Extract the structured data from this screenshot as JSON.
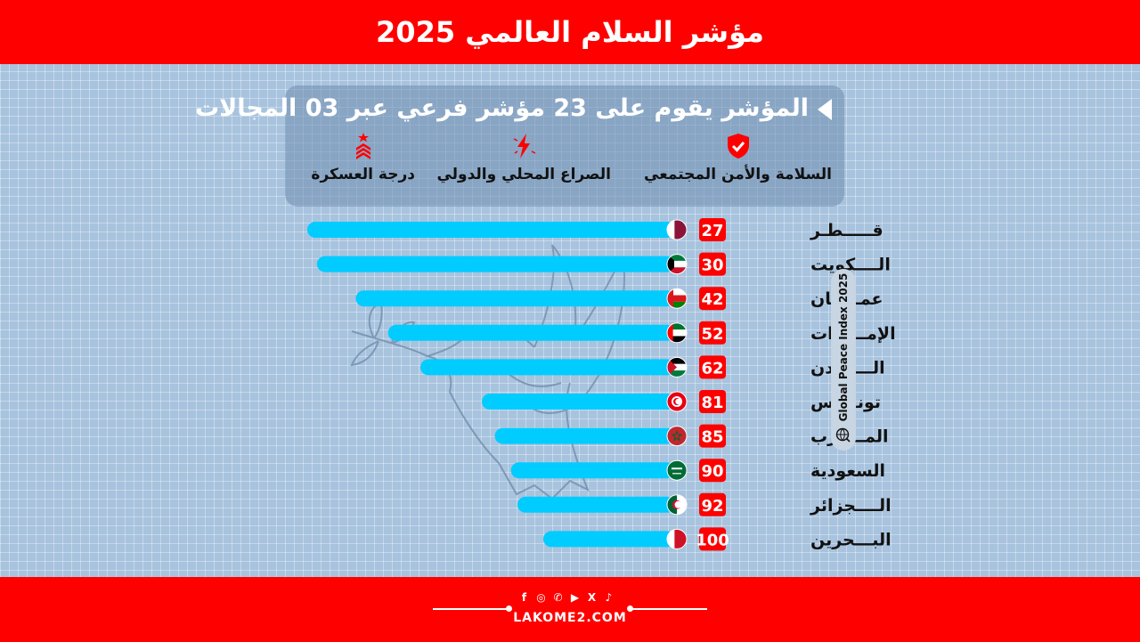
{
  "header": {
    "title": "مؤشر السلام العالمي 2025"
  },
  "info": {
    "heading": "المؤشر يقوم على 23 مؤشر فرعي عبر 03 المجالات",
    "domains": [
      {
        "label": "السلامة والأمن المجتمعي",
        "icon": "shield-check-icon"
      },
      {
        "label": "الصراع المحلي والدولي",
        "icon": "lightning-icon"
      },
      {
        "label": "درجة العسكرة",
        "icon": "military-rank-icon"
      }
    ]
  },
  "side_label": "Global Peace Index 2025",
  "colors": {
    "bar": "#00ccff",
    "accent": "#fe0000",
    "badge_text": "#ffffff"
  },
  "chart_data": {
    "type": "bar",
    "categories": [
      "قـــــطـر",
      "الــــكويت",
      "عمـــــان",
      "الإمـــارات",
      "الــــأردن",
      "تونــــس",
      "المـــغرب",
      "السعودية",
      "الــــجزائر",
      "البـــحرين"
    ],
    "values": [
      27,
      30,
      42,
      52,
      62,
      81,
      85,
      90,
      92,
      100
    ],
    "flags": [
      "qatar-flag-icon",
      "kuwait-flag-icon",
      "oman-flag-icon",
      "uae-flag-icon",
      "jordan-flag-icon",
      "tunisia-flag-icon",
      "morocco-flag-icon",
      "saudi-flag-icon",
      "algeria-flag-icon",
      "bahrain-flag-icon"
    ]
  },
  "footer": {
    "site": "LAKOME2.COM",
    "social": [
      "facebook-icon",
      "instagram-icon",
      "whatsapp-icon",
      "youtube-icon",
      "x-icon",
      "tiktok-icon"
    ],
    "social_glyphs": [
      "f",
      "◎",
      "✆",
      "▶",
      "X",
      "♪"
    ]
  }
}
